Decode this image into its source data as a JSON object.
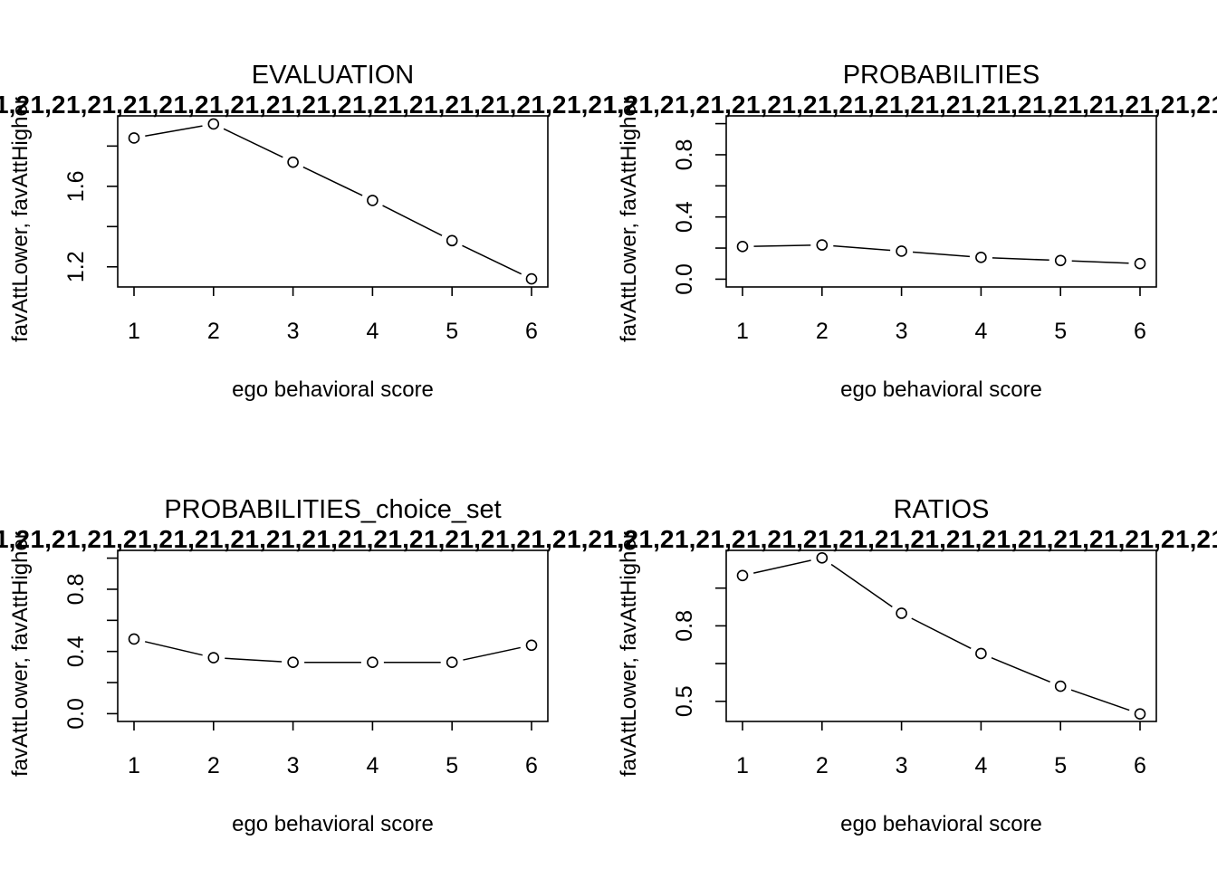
{
  "chart_data": [
    {
      "type": "line",
      "title": "EVALUATION",
      "xlabel": "ego behavioral score",
      "ylabel": "favAttLower, favAttHigher",
      "x": [
        1,
        2,
        3,
        4,
        5,
        6
      ],
      "y": [
        1.84,
        1.91,
        1.72,
        1.53,
        1.33,
        1.14
      ],
      "xlim": [
        1,
        6
      ],
      "ylim": [
        1.1,
        1.95
      ],
      "yticks": [
        1.2,
        1.4,
        1.6,
        1.8
      ],
      "ytick_labels": [
        "1.2",
        "",
        "1.6",
        ""
      ],
      "overplotted_text": "1,2"
    },
    {
      "type": "line",
      "title": "PROBABILITIES",
      "xlabel": "ego behavioral score",
      "ylabel": "favAttLower, favAttHigher",
      "x": [
        1,
        2,
        3,
        4,
        5,
        6
      ],
      "y": [
        0.21,
        0.22,
        0.18,
        0.14,
        0.12,
        0.1
      ],
      "xlim": [
        1,
        6
      ],
      "ylim": [
        -0.05,
        1.05
      ],
      "yticks": [
        0.0,
        0.2,
        0.4,
        0.6,
        0.8,
        1.0
      ],
      "ytick_labels": [
        "0.0",
        "",
        "0.4",
        "",
        "0.8",
        ""
      ],
      "overplotted_text": "1,2"
    },
    {
      "type": "line",
      "title": "PROBABILITIES_choice_set",
      "xlabel": "ego behavioral score",
      "ylabel": "favAttLower, favAttHigher",
      "x": [
        1,
        2,
        3,
        4,
        5,
        6
      ],
      "y": [
        0.48,
        0.36,
        0.33,
        0.33,
        0.33,
        0.44
      ],
      "xlim": [
        1,
        6
      ],
      "ylim": [
        -0.05,
        1.05
      ],
      "yticks": [
        0.0,
        0.2,
        0.4,
        0.6,
        0.8,
        1.0
      ],
      "ytick_labels": [
        "0.0",
        "",
        "0.4",
        "",
        "0.8",
        ""
      ],
      "overplotted_text": "1,2"
    },
    {
      "type": "line",
      "title": "RATIOS",
      "xlabel": "ego behavioral score",
      "ylabel": "favAttLower, favAttHigher",
      "x": [
        1,
        2,
        3,
        4,
        5,
        6
      ],
      "y": [
        1.0,
        1.07,
        0.85,
        0.69,
        0.56,
        0.45
      ],
      "xlim": [
        1,
        6
      ],
      "ylim": [
        0.42,
        1.1
      ],
      "yticks": [
        0.5,
        0.65,
        0.8,
        0.95
      ],
      "ytick_labels": [
        "0.5",
        "",
        "0.8",
        ""
      ],
      "overplotted_text": "1,2"
    }
  ]
}
